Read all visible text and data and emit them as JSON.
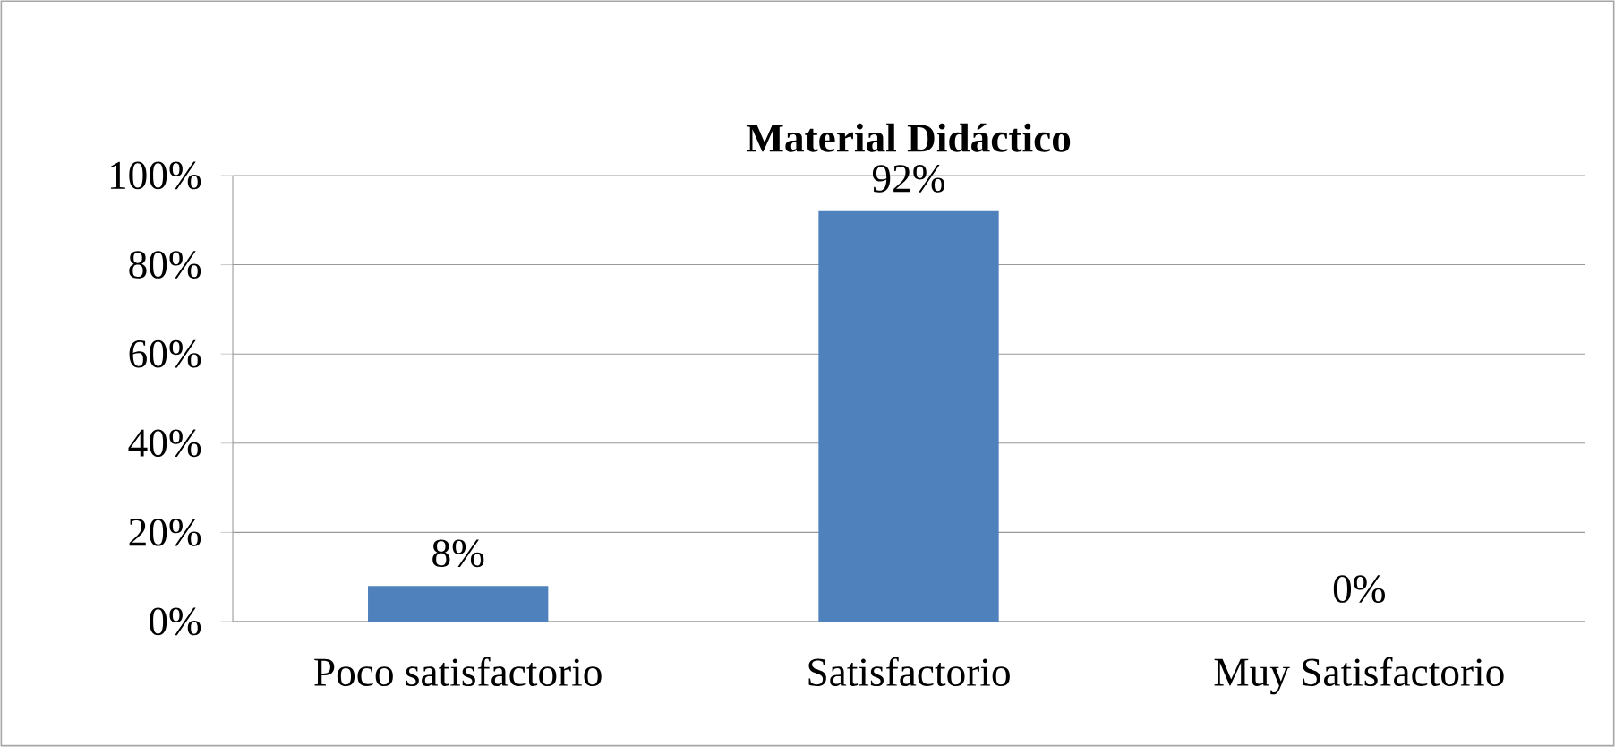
{
  "chart_data": {
    "type": "bar",
    "title": "Material Didáctico",
    "categories": [
      "Poco satisfactorio",
      "Satisfactorio",
      "Muy Satisfactorio"
    ],
    "values": [
      8,
      92,
      0
    ],
    "value_labels": [
      "8%",
      "92%",
      "0%"
    ],
    "color": "#4f81bd",
    "ylim": [
      0,
      100
    ],
    "yticks": [
      {
        "value": 0,
        "label": "0%"
      },
      {
        "value": 20,
        "label": "20%"
      },
      {
        "value": 40,
        "label": "40%"
      },
      {
        "value": 60,
        "label": "60%"
      },
      {
        "value": 80,
        "label": "80%"
      },
      {
        "value": 100,
        "label": "100%"
      }
    ],
    "grid": "y"
  }
}
